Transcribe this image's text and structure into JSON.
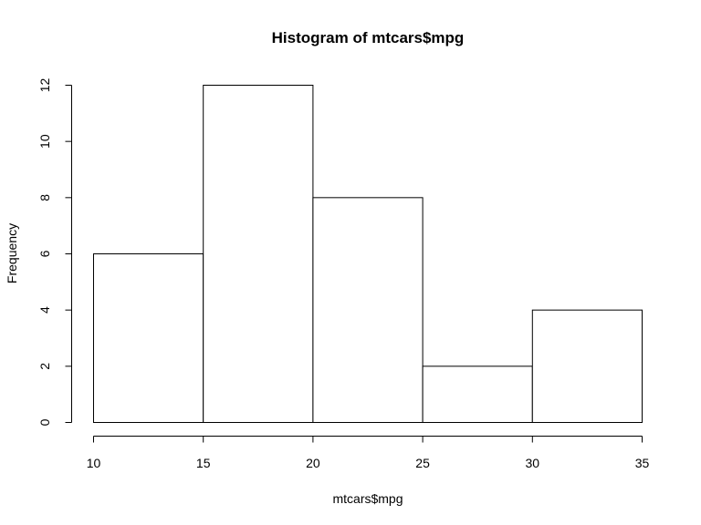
{
  "chart_data": {
    "type": "bar",
    "title": "Histogram of mtcars$mpg",
    "xlabel": "mtcars$mpg",
    "ylabel": "Frequency",
    "bins": [
      {
        "from": 10,
        "to": 15,
        "count": 6
      },
      {
        "from": 15,
        "to": 20,
        "count": 12
      },
      {
        "from": 20,
        "to": 25,
        "count": 8
      },
      {
        "from": 25,
        "to": 30,
        "count": 2
      },
      {
        "from": 30,
        "to": 35,
        "count": 4
      }
    ],
    "xlim": [
      10,
      35
    ],
    "ylim": [
      0,
      12
    ],
    "x_ticks": [
      "10",
      "15",
      "20",
      "25",
      "30",
      "35"
    ],
    "y_ticks": [
      "0",
      "2",
      "4",
      "6",
      "8",
      "10",
      "12"
    ],
    "grid": false,
    "legend": "none",
    "bar_fill": "#ffffff",
    "bar_stroke": "#000000"
  }
}
